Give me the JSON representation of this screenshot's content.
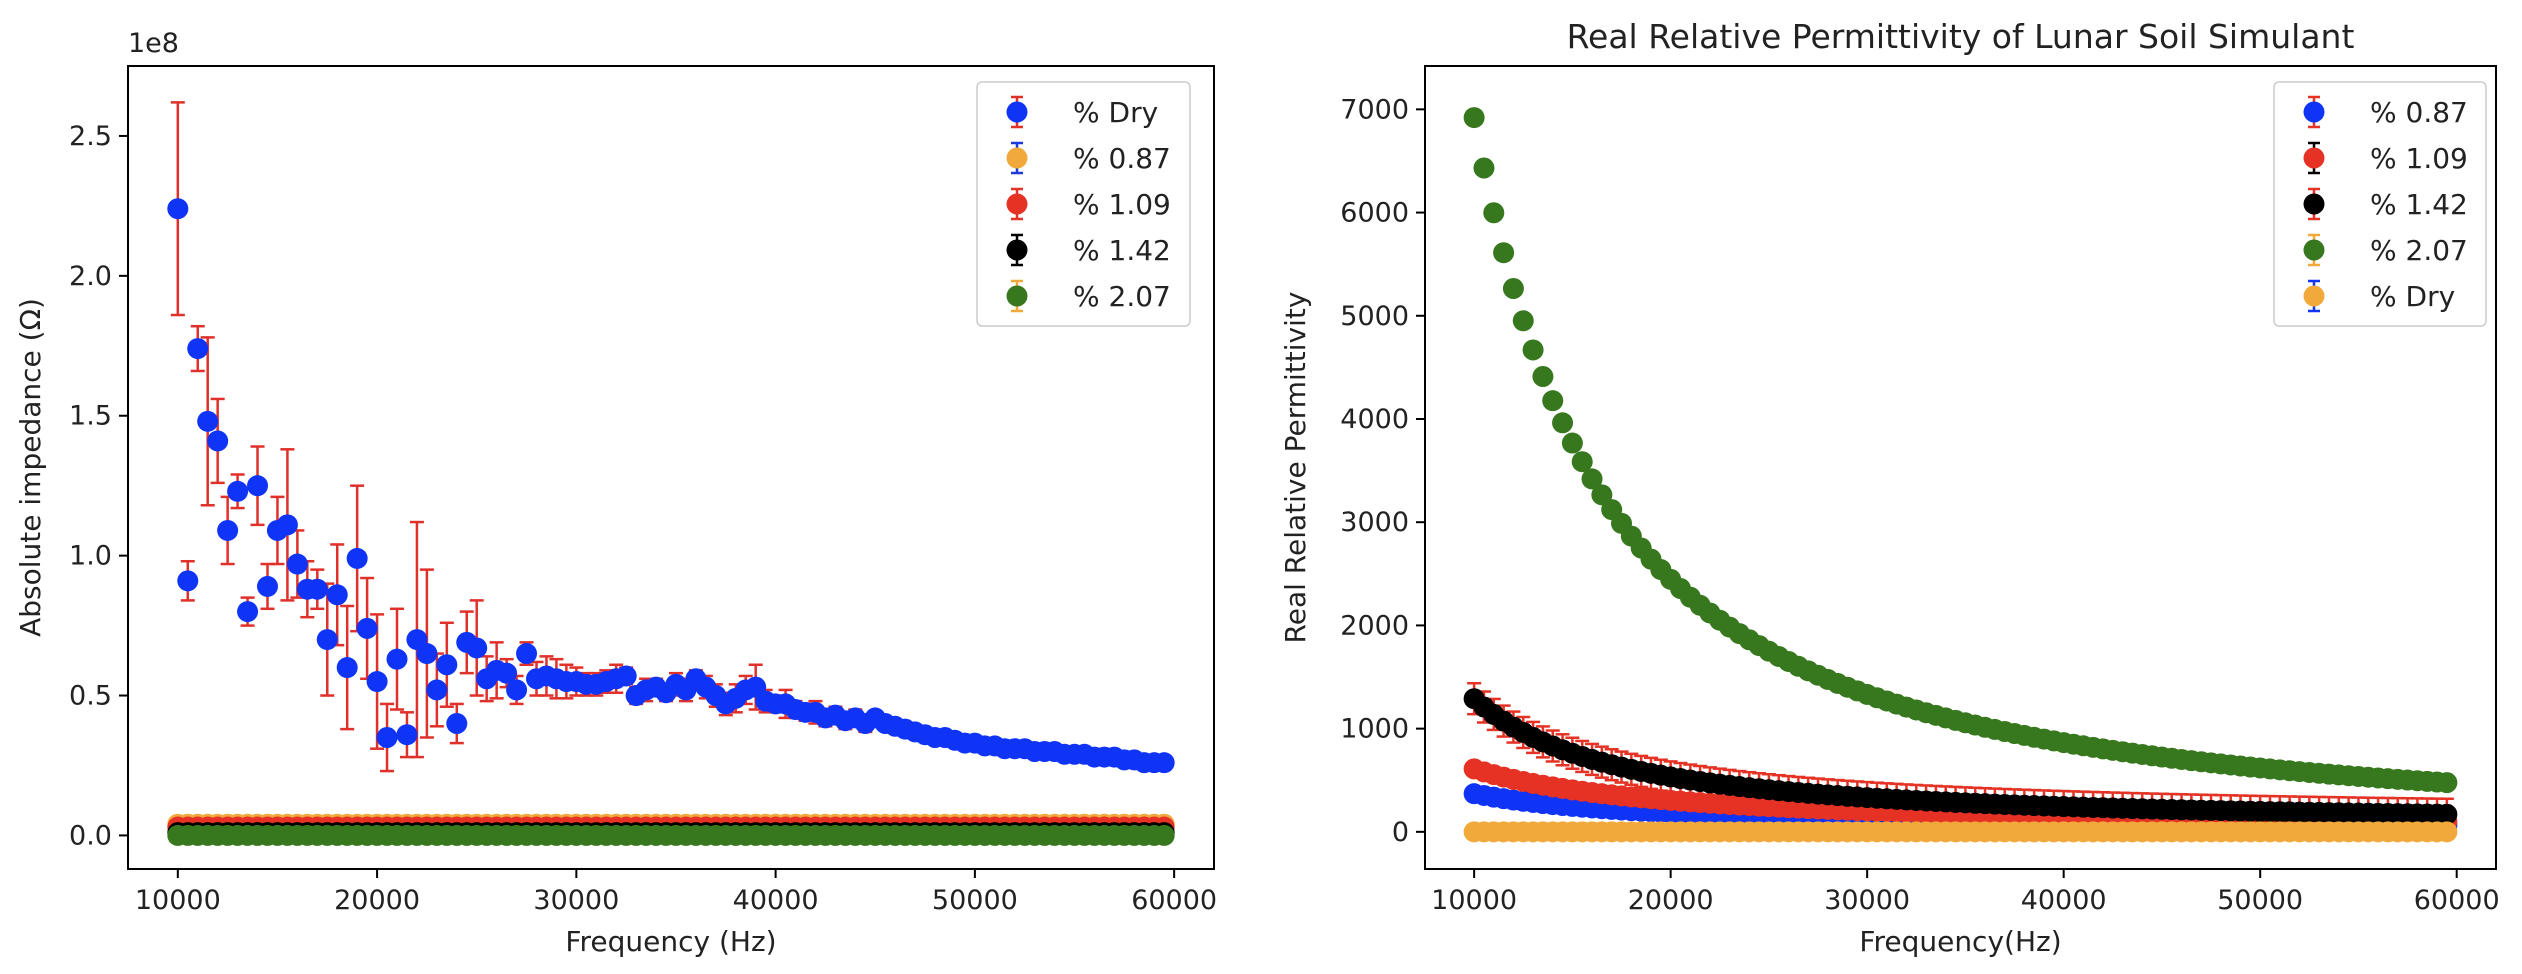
{
  "chart_data": [
    {
      "type": "scatter",
      "title": "",
      "xlabel": "Frequency (Hz)",
      "ylabel": "Absolute impedance (Ω)",
      "offset_text": "1e8",
      "xlim": [
        7500,
        62000
      ],
      "ylim": [
        -0.12,
        2.75
      ],
      "x_ticks": [
        10000,
        20000,
        30000,
        40000,
        50000,
        60000
      ],
      "y_ticks": [
        0.0,
        0.5,
        1.0,
        1.5,
        2.0,
        2.5
      ],
      "x_tick_labels": [
        "10000",
        "20000",
        "30000",
        "40000",
        "50000",
        "60000"
      ],
      "y_tick_labels": [
        "0.0",
        "0.5",
        "1.0",
        "1.5",
        "2.0",
        "2.5"
      ],
      "legend_position": "top-right",
      "grid": false,
      "series": [
        {
          "name": "% Dry",
          "color": "#1034f5",
          "errorbar_color": "#e0302a",
          "x": [
            10000,
            10500,
            11000,
            11500,
            12000,
            12500,
            13000,
            13500,
            14000,
            14500,
            15000,
            15500,
            16000,
            16500,
            17000,
            17500,
            18000,
            18500,
            19000,
            19500,
            20000,
            20500,
            21000,
            21500,
            22000,
            22500,
            23000,
            23500,
            24000,
            24500,
            25000,
            25500,
            26000,
            26500,
            27000,
            27500,
            28000,
            28500,
            29000,
            29500,
            30000,
            30500,
            31000,
            31500,
            32000,
            32500,
            33000,
            33500,
            34000,
            34500,
            35000,
            35500,
            36000,
            36500,
            37000,
            37500,
            38000,
            38500,
            39000,
            39500,
            40000,
            40500,
            41000,
            41500,
            42000,
            42500,
            43000,
            43500,
            44000,
            44500,
            45000,
            45500,
            46000,
            46500,
            47000,
            47500,
            48000,
            48500,
            49000,
            49500,
            50000,
            50500,
            51000,
            51500,
            52000,
            52500,
            53000,
            53500,
            54000,
            54500,
            55000,
            55500,
            56000,
            56500,
            57000,
            57500,
            58000,
            58500,
            59000,
            59500
          ],
          "y": [
            2.24,
            0.91,
            1.74,
            1.48,
            1.41,
            1.09,
            1.23,
            0.8,
            1.25,
            0.89,
            1.09,
            1.11,
            0.97,
            0.88,
            0.88,
            0.7,
            0.86,
            0.6,
            0.99,
            0.74,
            0.55,
            0.35,
            0.63,
            0.36,
            0.7,
            0.65,
            0.52,
            0.61,
            0.4,
            0.69,
            0.67,
            0.56,
            0.59,
            0.58,
            0.52,
            0.65,
            0.56,
            0.57,
            0.56,
            0.55,
            0.55,
            0.54,
            0.54,
            0.55,
            0.56,
            0.57,
            0.5,
            0.52,
            0.53,
            0.51,
            0.54,
            0.52,
            0.56,
            0.53,
            0.5,
            0.47,
            0.49,
            0.52,
            0.53,
            0.48,
            0.47,
            0.47,
            0.45,
            0.44,
            0.44,
            0.42,
            0.43,
            0.41,
            0.42,
            0.4,
            0.42,
            0.4,
            0.39,
            0.38,
            0.37,
            0.36,
            0.35,
            0.35,
            0.34,
            0.33,
            0.33,
            0.32,
            0.32,
            0.31,
            0.31,
            0.31,
            0.3,
            0.3,
            0.3,
            0.29,
            0.29,
            0.29,
            0.28,
            0.28,
            0.28,
            0.27,
            0.27,
            0.26,
            0.26,
            0.26
          ],
          "err": [
            0.38,
            0.07,
            0.08,
            0.3,
            0.15,
            0.12,
            0.06,
            0.05,
            0.14,
            0.08,
            0.12,
            0.27,
            0.12,
            0.1,
            0.07,
            0.2,
            0.18,
            0.22,
            0.26,
            0.18,
            0.24,
            0.12,
            0.18,
            0.08,
            0.42,
            0.3,
            0.13,
            0.15,
            0.07,
            0.11,
            0.17,
            0.08,
            0.1,
            0.05,
            0.05,
            0.04,
            0.06,
            0.07,
            0.07,
            0.06,
            0.05,
            0.04,
            0.04,
            0.04,
            0.05,
            0.03,
            0.03,
            0.04,
            0.03,
            0.03,
            0.04,
            0.04,
            0.03,
            0.04,
            0.04,
            0.04,
            0.05,
            0.05,
            0.08,
            0.04,
            0.03,
            0.05,
            0.03,
            0.03,
            0.04,
            0.03,
            0.03,
            0.03,
            0.03,
            0.03,
            0.02,
            0.02,
            0.02,
            0.02,
            0.02,
            0.02,
            0.02,
            0.02,
            0.02,
            0.02,
            0.02,
            0.02,
            0.02,
            0.02,
            0.02,
            0.02,
            0.02,
            0.02,
            0.02,
            0.02,
            0.02,
            0.02,
            0.02,
            0.02,
            0.02,
            0.02,
            0.02,
            0.02,
            0.02,
            0.02
          ]
        },
        {
          "name": "% 0.87",
          "color": "#f2a93b",
          "errorbar_color": "#1a3ad9",
          "x_range": [
            10000,
            59500,
            500
          ],
          "constant_y": 0.04,
          "err": 0.01
        },
        {
          "name": "% 1.09",
          "color": "#e53224",
          "errorbar_color": "#e53224",
          "x_range": [
            10000,
            59500,
            500
          ],
          "constant_y": 0.03,
          "err": 0.01
        },
        {
          "name": "% 1.42",
          "color": "#000000",
          "errorbar_color": "#000000",
          "x_range": [
            10000,
            59500,
            500
          ],
          "constant_y": 0.01,
          "err": 0.005
        },
        {
          "name": "% 2.07",
          "color": "#37781e",
          "errorbar_color": "#f2a93b",
          "x_range": [
            10000,
            59500,
            500
          ],
          "constant_y": 0.0,
          "err": 0.005
        }
      ]
    },
    {
      "type": "scatter",
      "title": "Real Relative Permittivity of Lunar Soil Simulant",
      "xlabel": "Frequency(Hz)",
      "ylabel": "Real Relative Permittivity",
      "xlim": [
        7500,
        62000
      ],
      "ylim": [
        -360,
        7420
      ],
      "x_ticks": [
        10000,
        20000,
        30000,
        40000,
        50000,
        60000
      ],
      "y_ticks": [
        0,
        1000,
        2000,
        3000,
        4000,
        5000,
        6000,
        7000
      ],
      "x_tick_labels": [
        "10000",
        "20000",
        "30000",
        "40000",
        "50000",
        "60000"
      ],
      "y_tick_labels": [
        "0",
        "1000",
        "2000",
        "3000",
        "4000",
        "5000",
        "6000",
        "7000"
      ],
      "legend_position": "top-right",
      "grid": false,
      "series": [
        {
          "name": "% 0.87",
          "color": "#1034f5",
          "errorbar_color": "#e53224",
          "x_range": [
            10000,
            59500,
            500
          ],
          "y_at_10k": 370,
          "exponent": 1.0,
          "floor": 0,
          "err": 20
        },
        {
          "name": "% 1.09",
          "color": "#e53224",
          "errorbar_color": "#000000",
          "x_range": [
            10000,
            59500,
            500
          ],
          "y_at_10k": 610,
          "exponent": 1.0,
          "floor": 0,
          "err": 30
        },
        {
          "name": "% 1.42",
          "color": "#000000",
          "errorbar_color": "#e53224",
          "x_range": [
            10000,
            59500,
            500
          ],
          "y_at_10k": 1290,
          "exponent": 1.4,
          "floor": 70,
          "err": 150
        },
        {
          "name": "% 2.07",
          "color": "#37781e",
          "errorbar_color": "#f2a93b",
          "x_range": [
            10000,
            59500,
            500
          ],
          "y_at_10k": 6920,
          "exponent": 1.5,
          "floor": 0,
          "err": 60
        },
        {
          "name": "% Dry",
          "color": "#f2a93b",
          "errorbar_color": "#1034f5",
          "x_range": [
            10000,
            59500,
            500
          ],
          "constant_y": 0,
          "err": 5
        }
      ]
    }
  ]
}
